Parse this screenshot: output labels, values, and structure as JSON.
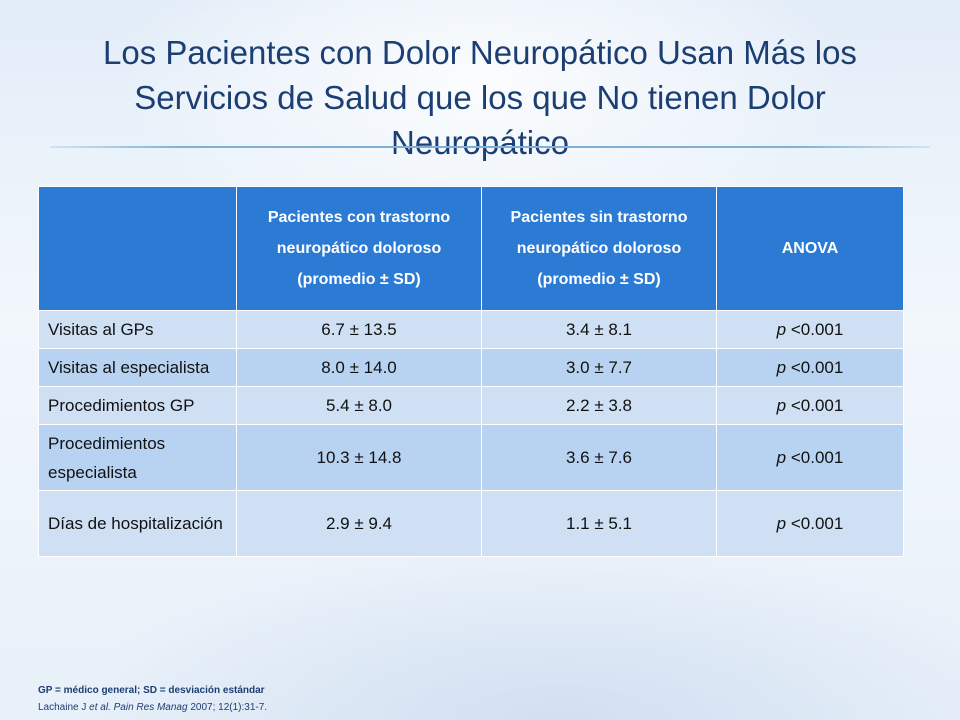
{
  "slide": {
    "title": "Los Pacientes con Dolor Neuropático Usan Más los Servicios de Salud que los que No tienen Dolor Neuropático"
  },
  "table": {
    "headers": [
      "",
      "Pacientes con trastorno neuropático doloroso\n(promedio ± SD)",
      "Pacientes sin trastorno neuropático doloroso\n(promedio ± SD)",
      "ANOVA"
    ],
    "rows": [
      {
        "label": "Visitas al GPs",
        "with": "6.7 ± 13.5",
        "without": "3.4 ± 8.1",
        "anova_p": "p",
        "anova_value": " <0.001"
      },
      {
        "label": "Visitas al especialista",
        "with": "8.0 ± 14.0",
        "without": "3.0 ± 7.7",
        "anova_p": "p",
        "anova_value": " <0.001"
      },
      {
        "label": "Procedimientos GP",
        "with": "5.4 ± 8.0",
        "without": "2.2 ± 3.8",
        "anova_p": "p",
        "anova_value": " <0.001"
      },
      {
        "label": "Procedimientos especialista",
        "with": "10.3 ± 14.8",
        "without": "3.6 ± 7.6",
        "anova_p": "p",
        "anova_value": " <0.001"
      },
      {
        "label": "Días de hospitalización",
        "with": "2.9 ± 9.4",
        "without": "1.1 ± 5.1",
        "anova_p": "p",
        "anova_value": " <0.001"
      }
    ]
  },
  "footer": {
    "abbreviations": "GP = médico general; SD = desviación estándar",
    "reference_authors": "Lachaine J ",
    "reference_etal": "et al. ",
    "reference_journal": "Pain Res Manag",
    "reference_rest": " 2007; 12(1):31-7."
  },
  "colors": {
    "header_blue": "#2b7bd5",
    "row_light": "#cfe0f5",
    "row_alt": "#b7d3f1",
    "title": "#1c3f73"
  }
}
